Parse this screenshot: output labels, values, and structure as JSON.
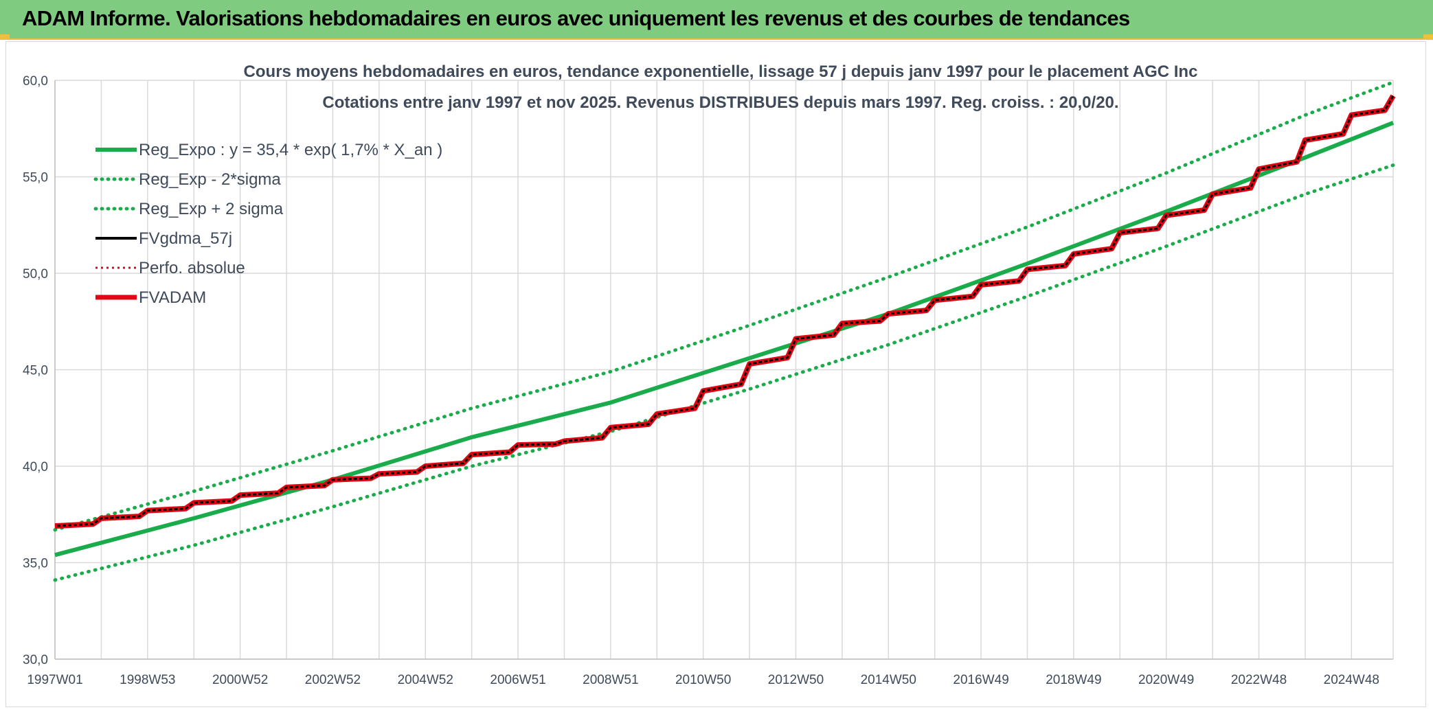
{
  "header": {
    "title": "ADAM Informe. Valorisations hebdomadaires en euros avec uniquement les revenus et des courbes de tendances"
  },
  "colors": {
    "header_bg": "#7fcb7f",
    "accent": "#e8c23a",
    "reg_green": "#1aab4b",
    "fvadam_red": "#e30613",
    "fvgdma_black": "#000000",
    "grid": "#d9d9d9",
    "text": "#3f4a5a"
  },
  "chart_data": {
    "type": "line",
    "title": "Cours moyens hebdomadaires en euros, tendance exponentielle, lissage 57 j depuis janv 1997 pour le placement AGC Inc",
    "subtitle": "Cotations entre janv 1997 et nov 2025. Revenus DISTRIBUES depuis mars 1997. Reg. croiss. : 20,0/20.",
    "xlabel": "",
    "ylabel": "",
    "ylim": [
      30,
      60
    ],
    "yticks": [
      "30,0",
      "35,0",
      "40,0",
      "45,0",
      "50,0",
      "55,0",
      "60,0"
    ],
    "xlim": [
      1997.0,
      2025.9
    ],
    "xticks": [
      {
        "label": "1997W01",
        "x": 1997.0
      },
      {
        "label": "1998W53",
        "x": 1999.0
      },
      {
        "label": "2000W52",
        "x": 2001.0
      },
      {
        "label": "2002W52",
        "x": 2003.0
      },
      {
        "label": "2004W52",
        "x": 2005.0
      },
      {
        "label": "2006W51",
        "x": 2007.0
      },
      {
        "label": "2008W51",
        "x": 2009.0
      },
      {
        "label": "2010W50",
        "x": 2011.0
      },
      {
        "label": "2012W50",
        "x": 2013.0
      },
      {
        "label": "2014W50",
        "x": 2015.0
      },
      {
        "label": "2016W49",
        "x": 2017.0
      },
      {
        "label": "2018W49",
        "x": 2019.0
      },
      {
        "label": "2020W49",
        "x": 2021.0
      },
      {
        "label": "2022W48",
        "x": 2023.0
      },
      {
        "label": "2024W48",
        "x": 2025.0
      }
    ],
    "grid": true,
    "legend_position": "top-left",
    "series": [
      {
        "name": "Reg_Expo : y = 35,4 * exp( 1,7% *  X_an )",
        "style": "solid",
        "color": "#1aab4b",
        "x": [
          1997,
          2000,
          2003,
          2006,
          2009,
          2012,
          2015,
          2018,
          2021,
          2024,
          2025.9
        ],
        "y": [
          35.4,
          37.3,
          39.3,
          41.5,
          43.3,
          45.6,
          47.9,
          50.5,
          53.2,
          56.0,
          57.8
        ]
      },
      {
        "name": "Reg_Exp - 2*sigma",
        "style": "dotted",
        "color": "#1aab4b",
        "x": [
          1997,
          2000,
          2003,
          2006,
          2009,
          2012,
          2015,
          2018,
          2021,
          2024,
          2025.9
        ],
        "y": [
          34.1,
          35.9,
          37.9,
          40.0,
          41.8,
          44.0,
          46.3,
          48.8,
          51.4,
          54.1,
          55.6
        ]
      },
      {
        "name": "Reg_Exp + 2 sigma",
        "style": "dotted",
        "color": "#1aab4b",
        "x": [
          1997,
          2000,
          2003,
          2006,
          2009,
          2012,
          2015,
          2018,
          2021,
          2024,
          2025.9
        ],
        "y": [
          36.7,
          38.7,
          40.8,
          43.0,
          44.9,
          47.3,
          49.8,
          52.4,
          55.2,
          58.2,
          59.9
        ]
      },
      {
        "name": "FVgdma_57j",
        "style": "solid",
        "color": "#000000",
        "x": [
          1997,
          1998,
          1999,
          2000,
          2001,
          2002,
          2003,
          2004,
          2005,
          2006,
          2007,
          2008,
          2009,
          2010,
          2011,
          2012,
          2013,
          2014,
          2015,
          2016,
          2017,
          2018,
          2019,
          2020,
          2021,
          2022,
          2023,
          2024,
          2025,
          2025.9
        ],
        "y": [
          36.9,
          37.3,
          37.7,
          38.1,
          38.5,
          38.9,
          39.3,
          39.6,
          40.0,
          40.6,
          41.1,
          41.3,
          42.0,
          42.7,
          43.9,
          45.3,
          46.6,
          47.4,
          47.9,
          48.6,
          49.4,
          50.2,
          51.0,
          52.1,
          53.0,
          54.1,
          55.4,
          56.9,
          58.2,
          59.2
        ]
      },
      {
        "name": "Perfo. absolue",
        "style": "dotted",
        "color": "#e30613",
        "x": [
          1997,
          1998,
          1999,
          2000,
          2001,
          2002,
          2003,
          2004,
          2005,
          2006,
          2007,
          2008,
          2009,
          2010,
          2011,
          2012,
          2013,
          2014,
          2015,
          2016,
          2017,
          2018,
          2019,
          2020,
          2021,
          2022,
          2023,
          2024,
          2025,
          2025.9
        ],
        "y": [
          36.9,
          37.3,
          37.7,
          38.1,
          38.5,
          38.9,
          39.3,
          39.6,
          40.0,
          40.6,
          41.1,
          41.3,
          42.0,
          42.7,
          43.9,
          45.3,
          46.6,
          47.4,
          47.9,
          48.6,
          49.4,
          50.2,
          51.0,
          52.1,
          53.0,
          54.1,
          55.4,
          56.9,
          58.2,
          59.2
        ]
      },
      {
        "name": "FVADAM",
        "style": "solid",
        "color": "#e30613",
        "x": [
          1997,
          1998,
          1999,
          2000,
          2001,
          2002,
          2003,
          2004,
          2005,
          2006,
          2007,
          2008,
          2009,
          2010,
          2011,
          2012,
          2013,
          2014,
          2015,
          2016,
          2017,
          2018,
          2019,
          2020,
          2021,
          2022,
          2023,
          2024,
          2025,
          2025.9
        ],
        "y": [
          36.9,
          37.3,
          37.7,
          38.1,
          38.5,
          38.9,
          39.3,
          39.6,
          40.0,
          40.6,
          41.1,
          41.3,
          42.0,
          42.7,
          43.9,
          45.3,
          46.6,
          47.4,
          47.9,
          48.6,
          49.4,
          50.2,
          51.0,
          52.1,
          53.0,
          54.1,
          55.4,
          56.9,
          58.2,
          59.2
        ]
      }
    ]
  }
}
